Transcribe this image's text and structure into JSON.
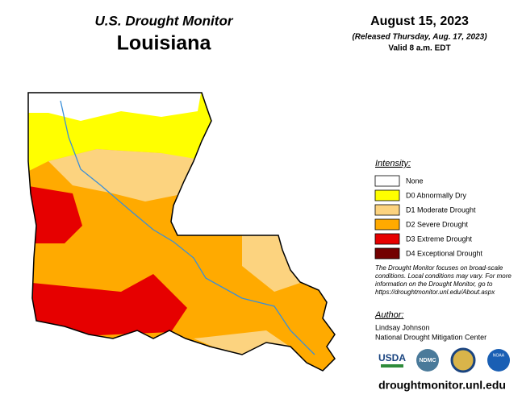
{
  "header": {
    "program": "U.S. Drought Monitor",
    "state": "Louisiana",
    "date": "August 15, 2023",
    "released": "(Released Thursday, Aug. 17, 2023)",
    "valid": "Valid 8 a.m. EDT"
  },
  "legend": {
    "title": "Intensity:",
    "items": [
      {
        "label": "None",
        "color": "#ffffff"
      },
      {
        "label": "D0 Abnormally Dry",
        "color": "#ffff00"
      },
      {
        "label": "D1 Moderate Drought",
        "color": "#fcd37f"
      },
      {
        "label": "D2 Severe Drought",
        "color": "#ffaa00"
      },
      {
        "label": "D3 Extreme Drought",
        "color": "#e60000"
      },
      {
        "label": "D4 Exceptional Drought",
        "color": "#730000"
      }
    ]
  },
  "note": [
    "The Drought Monitor focuses on broad-scale",
    "conditions. Local conditions may vary. For more",
    "information on the Drought Monitor, go to",
    "https://droughtmonitor.unl.edu/About.aspx"
  ],
  "author": {
    "title": "Author:",
    "lines": [
      "Lindsay Johnson",
      "National Drought Mitigation Center"
    ]
  },
  "logos": [
    "USDA",
    "NDMC",
    "NOAA"
  ],
  "footer": "droughtmonitor.unl.edu"
}
